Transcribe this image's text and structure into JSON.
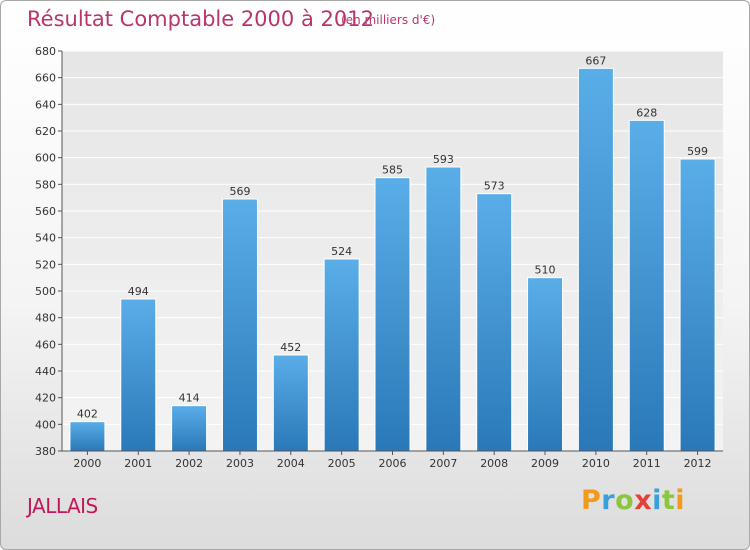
{
  "title": "Résultat Comptable 2000 à 2012",
  "unit_label": "(en milliers d'€)",
  "place": "JALLAIS",
  "logo_text": "Proxiti",
  "colors": {
    "title": "#b8356e",
    "place": "#c2185b",
    "bar_light": "#5aaee8",
    "bar_dark": "#2a78b8"
  },
  "chart_data": {
    "type": "bar",
    "categories": [
      "2000",
      "2001",
      "2002",
      "2003",
      "2004",
      "2005",
      "2006",
      "2007",
      "2008",
      "2009",
      "2010",
      "2011",
      "2012"
    ],
    "values": [
      402,
      494,
      414,
      569,
      452,
      524,
      585,
      593,
      573,
      510,
      667,
      628,
      599
    ],
    "data_labels": [
      "402",
      "494",
      "414",
      "569",
      "452",
      "524",
      "585",
      "593",
      "573",
      "510",
      "667",
      "628",
      "599"
    ],
    "ylim": [
      380,
      680
    ],
    "yticks": [
      380,
      400,
      420,
      440,
      460,
      480,
      500,
      520,
      540,
      560,
      580,
      600,
      620,
      640,
      660,
      680
    ],
    "ytick_labels": [
      "380",
      "400",
      "420",
      "440",
      "460",
      "480",
      "500",
      "520",
      "540",
      "560",
      "580",
      "600",
      "620",
      "640",
      "660",
      "680"
    ],
    "grid": true,
    "xlabel": "",
    "ylabel": ""
  }
}
